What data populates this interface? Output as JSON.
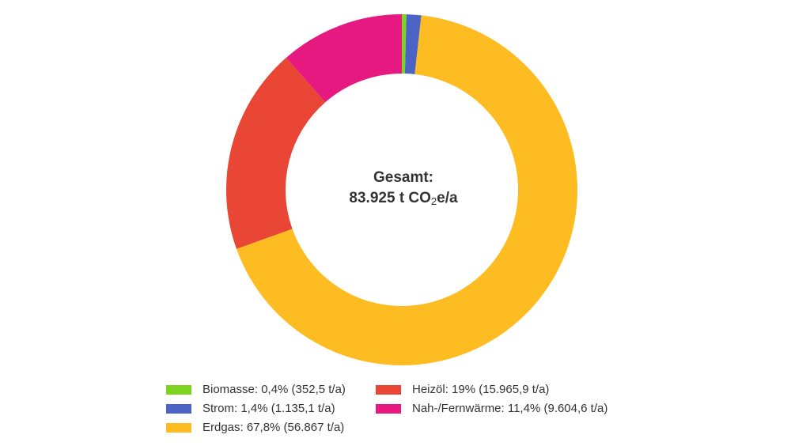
{
  "center": {
    "line1": "Gesamt:",
    "prefix": "83.925 t CO",
    "sub": "2",
    "suffix": "e/a"
  },
  "legend": [
    {
      "label": "Biomasse: 0,4% (352,5 t/a)",
      "color": "#7ed321"
    },
    {
      "label": "Heizöl: 19% (15.965,9 t/a)",
      "color": "#e94635"
    },
    {
      "label": "Strom: 1,4% (1.135,1 t/a)",
      "color": "#4a63c5"
    },
    {
      "label": "Nah-/Fernwärme: 11,4% (9.604,6 t/a)",
      "color": "#e5197f"
    },
    {
      "label": "Erdgas: 67,8% (56.867 t/a)",
      "color": "#fdbd22"
    }
  ],
  "chart_data": {
    "type": "pie",
    "variant": "donut",
    "unit": "t/a",
    "total": 83925,
    "slices": [
      {
        "name": "Biomasse",
        "value": 352.5,
        "percent": 0.4,
        "color": "#7ed321"
      },
      {
        "name": "Strom",
        "value": 1135.1,
        "percent": 1.4,
        "color": "#4a63c5"
      },
      {
        "name": "Erdgas",
        "value": 56867,
        "percent": 67.8,
        "color": "#fdbd22"
      },
      {
        "name": "Heizöl",
        "value": 15965.9,
        "percent": 19,
        "color": "#e94635"
      },
      {
        "name": "Nah-/Fernwärme",
        "value": 9604.6,
        "percent": 11.4,
        "color": "#e5197f"
      }
    ],
    "start_angle": "12 o'clock",
    "direction": "clockwise",
    "legend_position": "bottom"
  }
}
